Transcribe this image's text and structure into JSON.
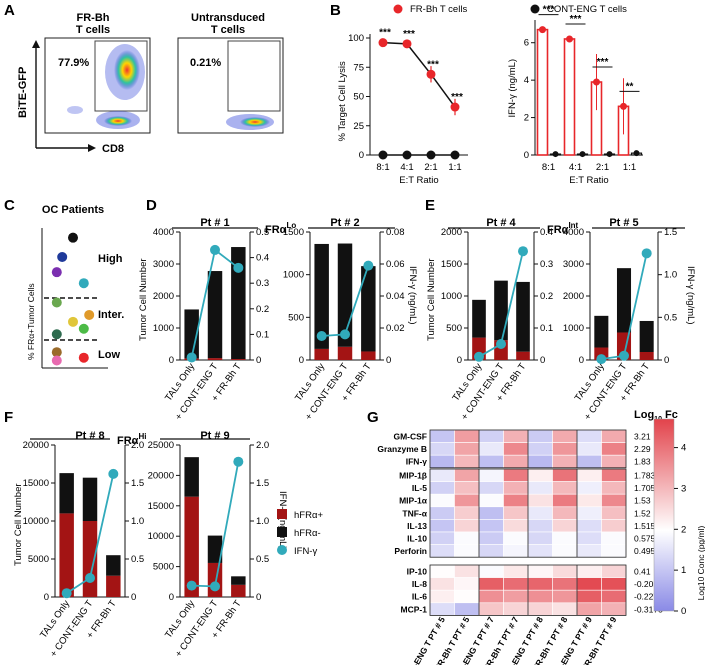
{
  "panel_labels": [
    "A",
    "B",
    "C",
    "D",
    "E",
    "F",
    "G"
  ],
  "panel_a": {
    "plots": [
      {
        "title": "FR-Bh\nT cells",
        "pct": "77.9%"
      },
      {
        "title": "Untransduced\nT cells",
        "pct": "0.21%"
      }
    ],
    "ylabel": "BiTE-GFP",
    "xlabel": "CD8"
  },
  "panel_b": {
    "legend": [
      {
        "name": "FR-Bh T cells",
        "color": "#e8262a"
      },
      {
        "name": "CONT-ENG T cells",
        "color": "#111111"
      }
    ],
    "xlabel": "E:T Ratio"
  },
  "panel_c": {
    "title": "OC Patients",
    "ylabel": "% FRα+Tumor Cells",
    "tiers": [
      "High",
      "Inter.",
      "Low"
    ]
  },
  "group_headers": {
    "lo": "FRα",
    "lo_sup": "Lo",
    "int": "FRα",
    "int_sup": "Int",
    "hi": "FRα",
    "hi_sup": "Hi"
  },
  "common": {
    "ylabel_left": "Tumor Cell Number",
    "ylabel_right": "IFN-γ (ng/mL)",
    "categories": [
      "TALs Only",
      "+ CONT-ENG T",
      "+ FR-Bh T"
    ],
    "legend": [
      {
        "name": "hFRα+",
        "color": "#a31414"
      },
      {
        "name": "hFRα-",
        "color": "#111111"
      },
      {
        "name": "IFN-γ",
        "color": "#31aabb"
      }
    ]
  },
  "panel_g": {
    "fc_title": "Log",
    "fc_title_sub": "10",
    "fc_title_suffix": " Fc",
    "cbar_label": "Log10 Conc (pg/ml)",
    "cbar_ticks": [
      "0",
      "1",
      "2",
      "3",
      "4"
    ],
    "rows": [
      "GM-CSF",
      "Granzyme B",
      "IFN-γ",
      "MIP-1β",
      "IL-5",
      "MIP-1α",
      "TNF-α",
      "IL-13",
      "IL-10",
      "Perforin",
      "IP-10",
      "IL-8",
      "IL-6",
      "MCP-1"
    ],
    "fc": [
      "3.21",
      "2.29",
      "1.83",
      "1.783",
      "1.705",
      "1.53",
      "1.52",
      "1.515",
      "0.575",
      "0.495",
      "0.41",
      "-0.205",
      "-0.2275",
      "-0.3175"
    ],
    "cols": [
      "C-ENG T PT # 5",
      "FR-Bh T PT # 5",
      "C-ENG T PT # 7",
      "FR-Bh T PT # 7",
      "C-ENG T PT # 8",
      "FR-Bh T PT # 8",
      "C-ENG T PT # 9",
      "FR-Bh T PT # 9"
    ]
  },
  "chart_data": [
    {
      "id": "B-lysis",
      "type": "line",
      "xlabel": "E:T Ratio",
      "ylabel": "% Target Cell Lysis",
      "categories": [
        "8:1",
        "4:1",
        "2:1",
        "1:1"
      ],
      "ylim": [
        0,
        100
      ],
      "yticks": [
        0,
        25,
        50,
        75,
        100
      ],
      "series": [
        {
          "name": "FR-Bh T cells",
          "values": [
            96,
            95,
            69,
            41
          ]
        },
        {
          "name": "CONT-ENG T cells",
          "values": [
            0,
            0,
            0,
            0
          ]
        }
      ],
      "significance": [
        "***",
        "***",
        "***",
        "***"
      ]
    },
    {
      "id": "B-ifng",
      "type": "bar",
      "xlabel": "E:T Ratio",
      "ylabel": "IFN-γ (ng/mL)",
      "categories": [
        "8:1",
        "4:1",
        "2:1",
        "1:1"
      ],
      "ylim": [
        0,
        7
      ],
      "yticks": [
        0,
        2,
        4,
        6
      ],
      "series": [
        {
          "name": "FR-Bh T cells",
          "values": [
            6.7,
            6.2,
            3.9,
            2.6
          ]
        },
        {
          "name": "CONT-ENG T cells",
          "values": [
            0.05,
            0.05,
            0.05,
            0.1
          ]
        }
      ],
      "significance": [
        "***",
        "***",
        "***",
        "**"
      ]
    },
    {
      "id": "C",
      "type": "scatter",
      "title": "OC Patients",
      "ylabel": "% FRα+Tumor Cells",
      "ylim": [
        0,
        100
      ],
      "thresholds": [
        50,
        20
      ],
      "points": [
        {
          "x": 1.0,
          "y": 93,
          "color": "#111111"
        },
        {
          "x": 0.6,
          "y": 79,
          "color": "#1f3a9a"
        },
        {
          "x": 0.4,
          "y": 68,
          "color": "#7b2fb0"
        },
        {
          "x": 1.4,
          "y": 60,
          "color": "#31aabb"
        },
        {
          "x": 0.4,
          "y": 46,
          "color": "#6aa84f"
        },
        {
          "x": 1.0,
          "y": 32,
          "color": "#e0c63a"
        },
        {
          "x": 0.4,
          "y": 23,
          "color": "#2e6b4f"
        },
        {
          "x": 1.4,
          "y": 27,
          "color": "#4cbb47"
        },
        {
          "x": 1.6,
          "y": 37,
          "color": "#e09a2a"
        },
        {
          "x": 0.4,
          "y": 10,
          "color": "#9a6a2a"
        },
        {
          "x": 1.4,
          "y": 6,
          "color": "#e8262a"
        },
        {
          "x": 0.4,
          "y": 4,
          "color": "#e86ab0"
        }
      ]
    },
    {
      "id": "Pt1",
      "type": "bar",
      "title": "Pt # 1",
      "categories": [
        "TALs Only",
        "+ CONT-ENG T",
        "+ FR-Bh T"
      ],
      "ylim": [
        0,
        4000
      ],
      "yticks": [
        0,
        1000,
        2000,
        3000,
        4000
      ],
      "y2lim": [
        0,
        0.5
      ],
      "y2ticks": [
        0,
        0.1,
        0.2,
        0.3,
        0.4,
        0.5
      ],
      "series": [
        {
          "name": "hFRα+",
          "values": [
            50,
            60,
            30
          ]
        },
        {
          "name": "hFRα-",
          "values": [
            1530,
            2720,
            3500
          ]
        },
        {
          "name": "IFN-γ",
          "values": [
            0.01,
            0.43,
            0.36
          ]
        }
      ]
    },
    {
      "id": "Pt2",
      "type": "bar",
      "title": "Pt # 2",
      "categories": [
        "TALs Only",
        "+ CONT-ENG T",
        "+ FR-Bh T"
      ],
      "ylim": [
        0,
        1500
      ],
      "yticks": [
        0,
        500,
        1000,
        1500
      ],
      "y2lim": [
        0,
        0.08
      ],
      "y2ticks": [
        0,
        0.02,
        0.04,
        0.06,
        0.08
      ],
      "series": [
        {
          "name": "hFRα+",
          "values": [
            130,
            155,
            100
          ]
        },
        {
          "name": "hFRα-",
          "values": [
            1230,
            1210,
            1000
          ]
        },
        {
          "name": "IFN-γ",
          "values": [
            0.015,
            0.016,
            0.059
          ]
        }
      ]
    },
    {
      "id": "Pt4",
      "type": "bar",
      "title": "Pt # 4",
      "categories": [
        "TALs Only",
        "+ CONT-ENG T",
        "+ FR-Bh T"
      ],
      "ylim": [
        0,
        2000
      ],
      "yticks": [
        0,
        500,
        1000,
        1500,
        2000
      ],
      "y2lim": [
        0,
        0.4
      ],
      "y2ticks": [
        0,
        0.1,
        0.2,
        0.3,
        0.4
      ],
      "series": [
        {
          "name": "hFRα+",
          "values": [
            350,
            310,
            130
          ]
        },
        {
          "name": "hFRα-",
          "values": [
            590,
            930,
            1090
          ]
        },
        {
          "name": "IFN-γ",
          "values": [
            0.01,
            0.05,
            0.34
          ]
        }
      ]
    },
    {
      "id": "Pt5",
      "type": "bar",
      "title": "Pt # 5",
      "categories": [
        "TALs Only",
        "+ CONT-ENG T",
        "+ FR-Bh T"
      ],
      "ylim": [
        0,
        4000
      ],
      "yticks": [
        0,
        1000,
        2000,
        3000,
        4000
      ],
      "y2lim": [
        0,
        1.5
      ],
      "y2ticks": [
        0,
        0.5,
        1.0,
        1.5
      ],
      "series": [
        {
          "name": "hFRα+",
          "values": [
            390,
            860,
            250
          ]
        },
        {
          "name": "hFRα-",
          "values": [
            990,
            2010,
            970
          ]
        },
        {
          "name": "IFN-γ",
          "values": [
            0.01,
            0.05,
            1.25
          ]
        }
      ]
    },
    {
      "id": "Pt8",
      "type": "bar",
      "title": "Pt # 8",
      "categories": [
        "TALs Only",
        "+ CONT-ENG T",
        "+ FR-Bh T"
      ],
      "ylim": [
        0,
        20000
      ],
      "yticks": [
        0,
        5000,
        10000,
        15000,
        20000
      ],
      "y2lim": [
        0,
        2.0
      ],
      "y2ticks": [
        0,
        0.5,
        1.0,
        1.5,
        2.0
      ],
      "series": [
        {
          "name": "hFRα+",
          "values": [
            11000,
            10000,
            2800
          ]
        },
        {
          "name": "hFRα-",
          "values": [
            5300,
            5700,
            2700
          ]
        },
        {
          "name": "IFN-γ",
          "values": [
            0.05,
            0.25,
            1.62
          ]
        }
      ]
    },
    {
      "id": "Pt9",
      "type": "bar",
      "title": "Pt # 9",
      "categories": [
        "TALs Only",
        "+ CONT-ENG T",
        "+ FR-Bh T"
      ],
      "ylim": [
        0,
        25000
      ],
      "yticks": [
        0,
        5000,
        10000,
        15000,
        20000,
        25000
      ],
      "y2lim": [
        0,
        2.0
      ],
      "y2ticks": [
        0,
        0.5,
        1.0,
        1.5,
        2.0
      ],
      "series": [
        {
          "name": "hFRα+",
          "values": [
            16500,
            5600,
            2000
          ]
        },
        {
          "name": "hFRα-",
          "values": [
            6500,
            4500,
            1400
          ]
        },
        {
          "name": "IFN-γ",
          "values": [
            0.15,
            0.14,
            1.78
          ]
        }
      ]
    },
    {
      "id": "G",
      "type": "heatmap",
      "rows": [
        "GM-CSF",
        "Granzyme B",
        "IFN-γ",
        "MIP-1β",
        "IL-5",
        "MIP-1α",
        "TNF-α",
        "IL-13",
        "IL-10",
        "Perforin",
        "IP-10",
        "IL-8",
        "IL-6",
        "MCP-1"
      ],
      "cols": [
        "C-ENG T PT # 5",
        "FR-Bh T PT # 5",
        "C-ENG T PT # 7",
        "FR-Bh T PT # 7",
        "C-ENG T PT # 8",
        "FR-Bh T PT # 8",
        "C-ENG T PT # 9",
        "FR-Bh T PT # 9"
      ],
      "colorbar": {
        "min": 0,
        "max": 4.7,
        "label": "Log10 Conc (pg/ml)"
      },
      "values": [
        [
          1.0,
          3.4,
          1.2,
          3.1,
          1.1,
          3.2,
          1.4,
          3.2
        ],
        [
          1.3,
          3.3,
          1.6,
          3.7,
          1.2,
          3.5,
          1.6,
          3.8
        ],
        [
          0.8,
          3.0,
          0.9,
          3.2,
          0.8,
          3.1,
          0.9,
          3.1
        ],
        [
          1.6,
          3.3,
          1.8,
          3.9,
          2.2,
          4.0,
          2.2,
          3.9
        ],
        [
          1.2,
          2.9,
          1.3,
          3.1,
          1.6,
          3.0,
          1.7,
          3.0
        ],
        [
          1.9,
          3.5,
          1.9,
          3.8,
          2.4,
          3.9,
          2.3,
          3.7
        ],
        [
          1.1,
          2.7,
          0.9,
          2.8,
          1.6,
          3.0,
          1.7,
          2.9
        ],
        [
          1.0,
          2.6,
          1.0,
          2.5,
          1.3,
          2.6,
          1.4,
          2.7
        ],
        [
          1.2,
          1.9,
          1.1,
          1.9,
          1.3,
          1.9,
          1.4,
          1.9
        ],
        [
          1.4,
          1.9,
          1.3,
          1.8,
          1.5,
          1.9,
          1.6,
          1.9
        ],
        [
          2.0,
          2.4,
          1.9,
          2.3,
          2.1,
          2.5,
          2.2,
          2.6
        ],
        [
          2.4,
          2.1,
          4.3,
          4.1,
          4.2,
          4.0,
          4.6,
          4.5
        ],
        [
          2.2,
          2.0,
          3.6,
          3.4,
          3.6,
          3.5,
          4.3,
          4.1
        ],
        [
          1.4,
          0.9,
          2.8,
          2.6,
          2.6,
          2.4,
          3.3,
          3.1
        ]
      ]
    }
  ]
}
